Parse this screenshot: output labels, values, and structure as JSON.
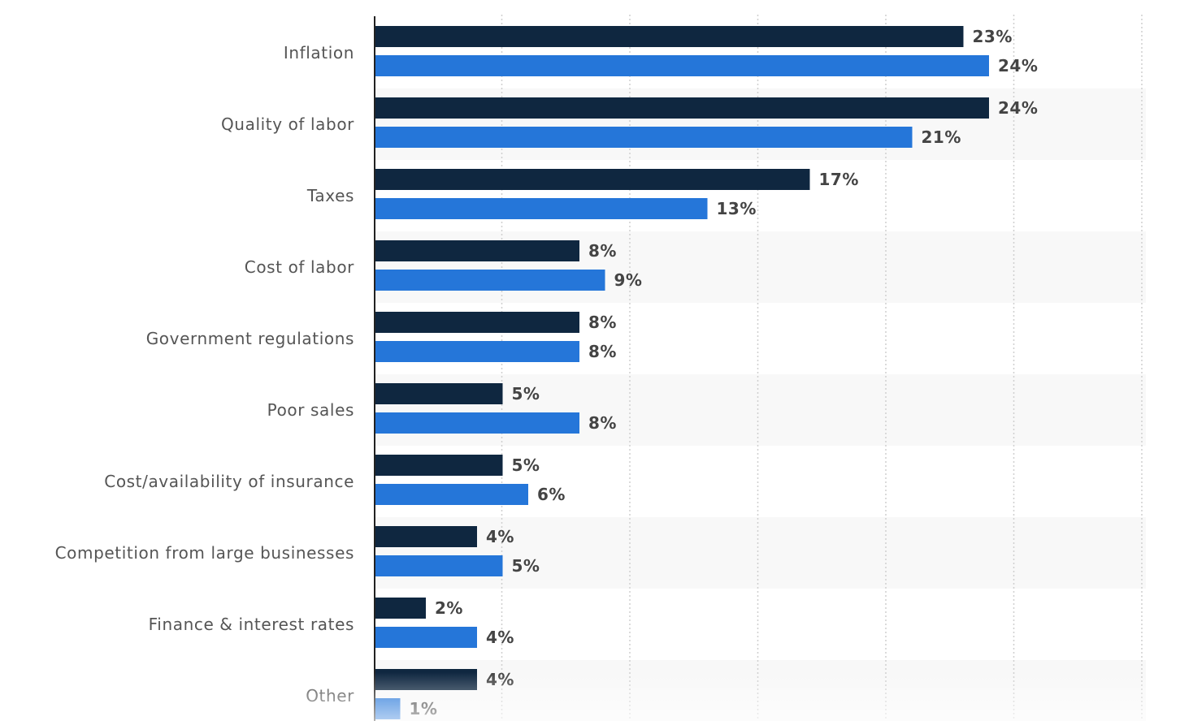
{
  "chart_data": {
    "type": "bar",
    "orientation": "horizontal",
    "title": "",
    "xlabel": "",
    "ylabel": "",
    "xlim": [
      0,
      30
    ],
    "grid": true,
    "value_suffix": "%",
    "categories": [
      "Inflation",
      "Quality of labor",
      "Taxes",
      "Cost of labor",
      "Government regulations",
      "Poor sales",
      "Cost/availability of insurance",
      "Competition from large businesses",
      "Finance & interest rates",
      "Other"
    ],
    "series": [
      {
        "name": "Series 1",
        "color": "#0f2740",
        "values": [
          23,
          24,
          17,
          8,
          8,
          5,
          5,
          4,
          2,
          4
        ]
      },
      {
        "name": "Series 2",
        "color": "#2576d9",
        "values": [
          24,
          21,
          13,
          9,
          8,
          8,
          6,
          5,
          4,
          1
        ]
      }
    ],
    "value_labels": [
      [
        "23%",
        "24%",
        "17%",
        "8%",
        "8%",
        "5%",
        "5%",
        "4%",
        "2%",
        "4%"
      ],
      [
        "24%",
        "21%",
        "13%",
        "9%",
        "8%",
        "8%",
        "6%",
        "5%",
        "4%",
        "1%"
      ]
    ]
  },
  "colors": {
    "band": "#f8f8f8",
    "grid": "#cfcfcf",
    "axis": "#222222",
    "category_text": "#555555",
    "value_text": "#444444"
  }
}
